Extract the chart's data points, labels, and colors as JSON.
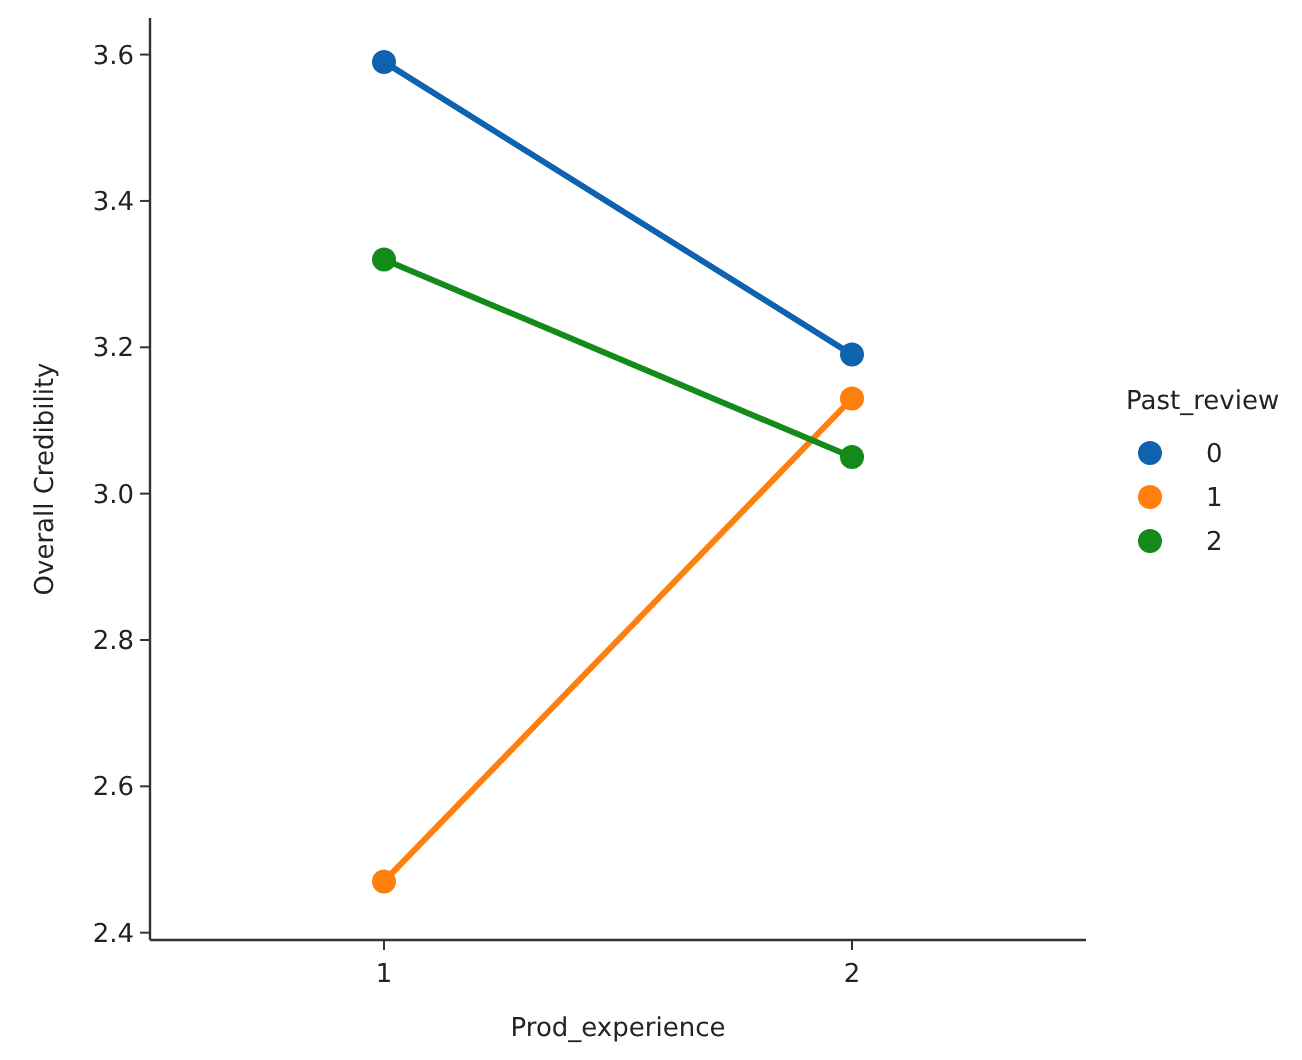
{
  "chart_data": {
    "type": "line",
    "xlabel": "Prod_experience",
    "ylabel": "Overall Credibility",
    "legend_title": "Past_review",
    "categories": [
      "1",
      "2"
    ],
    "series": [
      {
        "name": "0",
        "color": "#0f62ad",
        "values": [
          3.59,
          3.19
        ]
      },
      {
        "name": "1",
        "color": "#ff7f0e",
        "values": [
          2.47,
          3.13
        ]
      },
      {
        "name": "2",
        "color": "#138a1a",
        "values": [
          3.32,
          3.05
        ]
      }
    ],
    "ylim": [
      2.39,
      3.65
    ],
    "yticks": [
      {
        "value": 2.4,
        "label": "2.4"
      },
      {
        "value": 2.6,
        "label": "2.6"
      },
      {
        "value": 2.8,
        "label": "2.8"
      },
      {
        "value": 3.0,
        "label": "3.0"
      },
      {
        "value": 3.2,
        "label": "3.2"
      },
      {
        "value": 3.4,
        "label": "3.4"
      },
      {
        "value": 3.6,
        "label": "3.6"
      }
    ],
    "grid": false,
    "legend": "right",
    "marker": "circle",
    "line_style": "solid"
  }
}
